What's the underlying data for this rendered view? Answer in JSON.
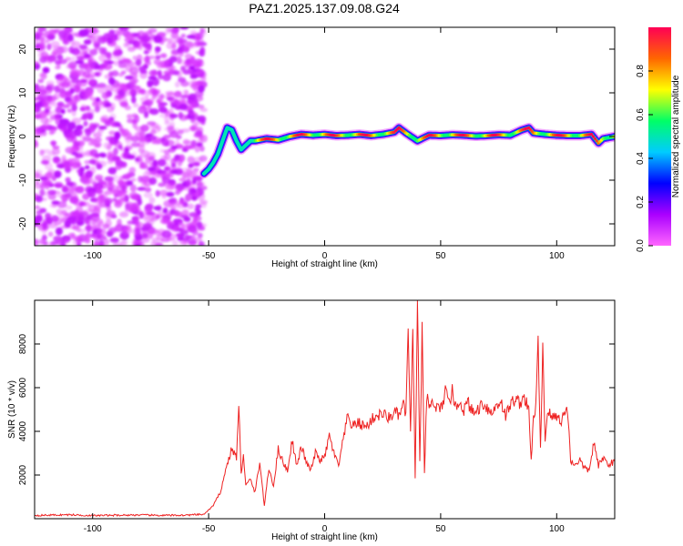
{
  "title": "PAZ1.2025.137.09.08.G24",
  "chart_data": [
    {
      "type": "heatmap",
      "xlabel": "Height of straight line (km)",
      "ylabel": "Frequency (Hz)",
      "xlim": [
        -125,
        125
      ],
      "ylim": [
        -25,
        25
      ],
      "xticks": [
        -100,
        -50,
        0,
        50,
        100
      ],
      "yticks": [
        -20,
        -10,
        0,
        10,
        20
      ],
      "colorbar": {
        "label": "Normalized spectral amplitude",
        "range": [
          0,
          1
        ],
        "ticks": [
          0.0,
          0.2,
          0.4,
          0.6,
          0.8
        ],
        "colors": [
          "#ff66ff",
          "#aa00ff",
          "#0000ff",
          "#00ccff",
          "#00ff66",
          "#ffff00",
          "#ff6600",
          "#ff0055"
        ]
      },
      "noise_region": {
        "x": [
          -125,
          -52
        ],
        "y": [
          -25,
          25
        ],
        "amplitude": [
          0.0,
          0.2
        ]
      },
      "ridge": {
        "x": [
          -52,
          -50,
          -48,
          -46,
          -44,
          -42,
          -40,
          -38,
          -36,
          -34,
          -32,
          -30,
          -25,
          -20,
          -15,
          -10,
          -5,
          0,
          5,
          10,
          15,
          20,
          25,
          30,
          32,
          35,
          40,
          45,
          50,
          55,
          60,
          65,
          70,
          75,
          80,
          85,
          88,
          90,
          95,
          100,
          105,
          110,
          115,
          118,
          120,
          125
        ],
        "y": [
          -8.5,
          -7.5,
          -6,
          -4,
          -1,
          2,
          1.5,
          -1,
          -3,
          -2,
          -1,
          -1,
          -0.5,
          -0.8,
          0,
          0.5,
          0.3,
          0.5,
          0.2,
          0.3,
          0.5,
          0.2,
          0.5,
          1,
          2,
          0.8,
          -1,
          0.3,
          0.2,
          0.4,
          0.3,
          0.1,
          0.2,
          0.4,
          0.3,
          1.5,
          2,
          0.8,
          0.5,
          0.3,
          0.2,
          0.2,
          0.5,
          -1.5,
          -0.5,
          0
        ]
      }
    },
    {
      "type": "line",
      "xlabel": "Height of straight line (km)",
      "ylabel": "SNR (10 * v/v)",
      "xlim": [
        -125,
        125
      ],
      "ylim": [
        0,
        10000
      ],
      "xticks": [
        -100,
        -50,
        0,
        50,
        100
      ],
      "yticks": [
        2000,
        4000,
        6000,
        8000
      ],
      "color": "#ee2222",
      "x": [
        -125,
        -110,
        -100,
        -90,
        -80,
        -70,
        -60,
        -52,
        -48,
        -45,
        -42,
        -40,
        -38,
        -37,
        -36,
        -35,
        -34,
        -32,
        -30,
        -28,
        -26,
        -24,
        -22,
        -20,
        -18,
        -16,
        -14,
        -12,
        -10,
        -8,
        -6,
        -4,
        -2,
        0,
        2,
        4,
        6,
        8,
        10,
        12,
        14,
        16,
        18,
        20,
        22,
        25,
        28,
        30,
        32,
        34,
        35,
        36,
        37,
        38,
        39,
        40,
        41,
        42,
        43,
        44,
        45,
        46,
        48,
        50,
        52,
        54,
        55,
        56,
        58,
        60,
        62,
        64,
        66,
        68,
        70,
        72,
        74,
        76,
        78,
        80,
        82,
        84,
        86,
        88,
        89,
        90,
        91,
        92,
        93,
        94,
        95,
        96,
        98,
        100,
        102,
        104,
        105,
        106,
        108,
        110,
        112,
        114,
        116,
        118,
        120,
        122,
        125
      ],
      "y": [
        150,
        180,
        140,
        160,
        170,
        150,
        160,
        200,
        600,
        1200,
        2500,
        3200,
        2800,
        5200,
        2000,
        3000,
        1500,
        1800,
        1200,
        2600,
        600,
        2300,
        1500,
        3200,
        2600,
        2200,
        3600,
        2400,
        3300,
        2600,
        2200,
        3000,
        2700,
        2800,
        3800,
        3000,
        2400,
        3600,
        4700,
        4200,
        4400,
        4300,
        4200,
        4500,
        4700,
        4800,
        4600,
        4900,
        4700,
        5200,
        4800,
        8400,
        3800,
        9000,
        1800,
        9800,
        2600,
        8500,
        2000,
        5600,
        5000,
        5300,
        5100,
        5000,
        5800,
        5100,
        6400,
        5000,
        5400,
        5000,
        5300,
        4800,
        5000,
        5300,
        5100,
        4800,
        5200,
        5400,
        4700,
        5200,
        5500,
        5300,
        5600,
        4900,
        2600,
        4700,
        5100,
        8000,
        3100,
        8000,
        3500,
        5000,
        4600,
        4700,
        4500,
        5000,
        4700,
        2600,
        2500,
        2700,
        2300,
        2200,
        3500,
        2400,
        2800,
        2500,
        2600
      ]
    }
  ]
}
